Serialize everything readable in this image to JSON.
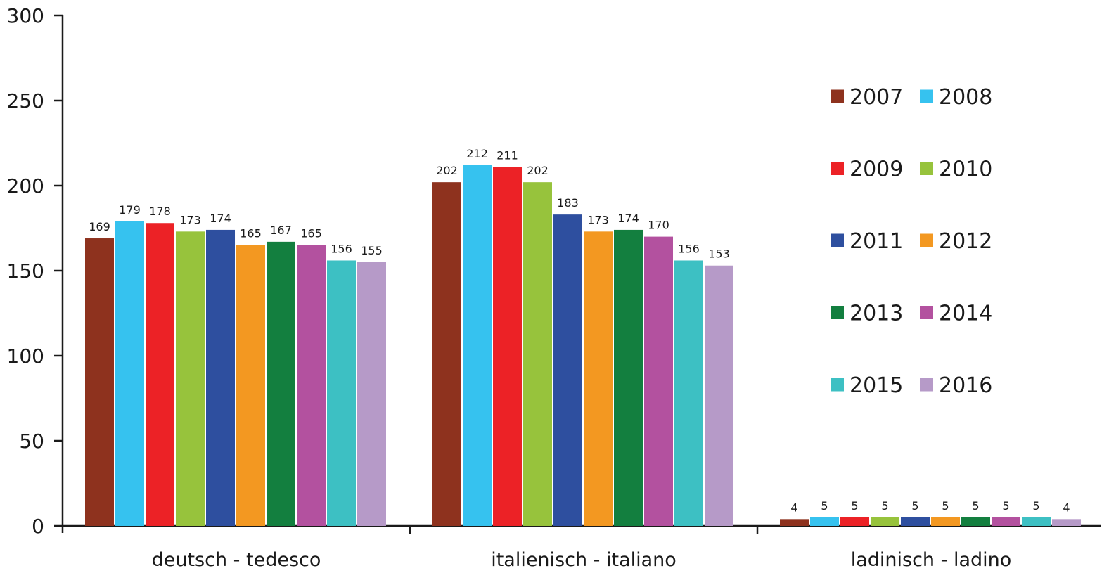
{
  "chart_data": {
    "type": "bar",
    "categories": [
      "deutsch - tedesco",
      "italienisch - italiano",
      "ladinisch - ladino"
    ],
    "series": [
      {
        "name": "2007",
        "color": "#8e321e",
        "values": [
          169,
          202,
          4
        ]
      },
      {
        "name": "2008",
        "color": "#36c2ef",
        "values": [
          179,
          212,
          5
        ]
      },
      {
        "name": "2009",
        "color": "#ec2226",
        "values": [
          178,
          211,
          5
        ]
      },
      {
        "name": "2010",
        "color": "#97c33c",
        "values": [
          173,
          202,
          5
        ]
      },
      {
        "name": "2011",
        "color": "#2e4f9f",
        "values": [
          174,
          183,
          5
        ]
      },
      {
        "name": "2012",
        "color": "#f39821",
        "values": [
          165,
          173,
          5
        ]
      },
      {
        "name": "2013",
        "color": "#137f3f",
        "values": [
          167,
          174,
          5
        ]
      },
      {
        "name": "2014",
        "color": "#b3519f",
        "values": [
          165,
          170,
          5
        ]
      },
      {
        "name": "2015",
        "color": "#3dc0c3",
        "values": [
          156,
          156,
          5
        ]
      },
      {
        "name": "2016",
        "color": "#b69ac8",
        "values": [
          155,
          153,
          4
        ]
      }
    ],
    "ylim": [
      0,
      300
    ],
    "yticks": [
      0,
      50,
      100,
      150,
      200,
      250,
      300
    ],
    "title": "",
    "xlabel": "",
    "ylabel": "",
    "grid": false,
    "legend_position": "top-right"
  }
}
